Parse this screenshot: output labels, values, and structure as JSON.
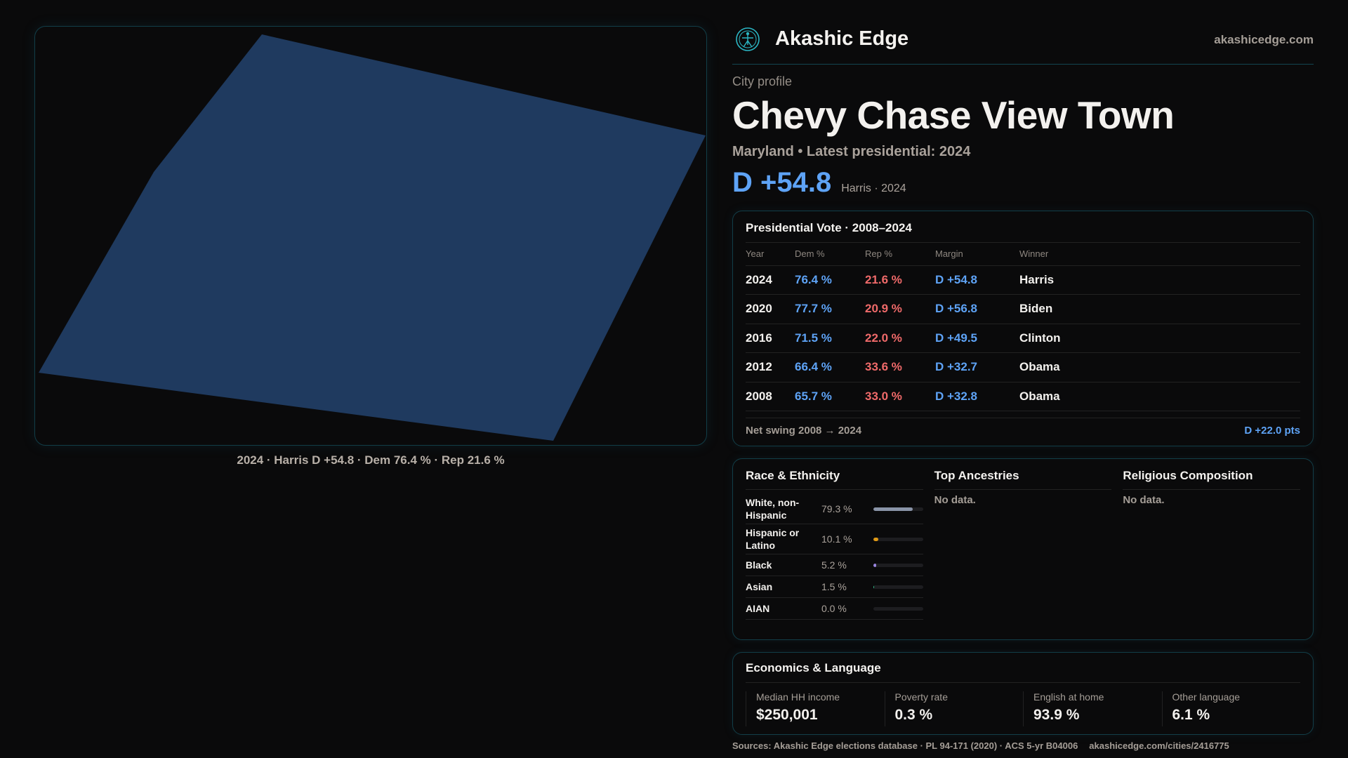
{
  "map": {
    "fill": "#1f3a5f",
    "caption": "2024 · Harris D +54.8 · Dem 76.4 % · Rep 21.6 %"
  },
  "header": {
    "brand": "Akashic Edge",
    "site": "akashicedge.com",
    "logo_icon": "compass-figure-icon"
  },
  "profile": {
    "eyebrow": "City profile",
    "title": "Chevy Chase View Town",
    "subtitle": "Maryland • Latest presidential: 2024",
    "margin": "D +54.8",
    "margin_note": "Harris · 2024"
  },
  "presidential": {
    "title": "Presidential Vote · 2008–2024",
    "columns": [
      "Year",
      "Dem %",
      "Rep %",
      "Margin",
      "Winner"
    ],
    "rows": [
      {
        "year": "2024",
        "dem": "76.4 %",
        "rep": "21.6 %",
        "margin": "D +54.8",
        "winner": "Harris"
      },
      {
        "year": "2020",
        "dem": "77.7 %",
        "rep": "20.9 %",
        "margin": "D +56.8",
        "winner": "Biden"
      },
      {
        "year": "2016",
        "dem": "71.5 %",
        "rep": "22.0 %",
        "margin": "D +49.5",
        "winner": "Clinton"
      },
      {
        "year": "2012",
        "dem": "66.4 %",
        "rep": "33.6 %",
        "margin": "D +32.7",
        "winner": "Obama"
      },
      {
        "year": "2008",
        "dem": "65.7 %",
        "rep": "33.0 %",
        "margin": "D +32.8",
        "winner": "Obama"
      }
    ],
    "swing_label": "Net swing 2008 → 2024",
    "swing_value": "D +22.0 pts"
  },
  "race": {
    "title": "Race & Ethnicity",
    "rows": [
      {
        "label": "White, non-Hispanic",
        "pct": "79.3 %",
        "value": 79.3,
        "color": "#8a94a8"
      },
      {
        "label": "Hispanic or Latino",
        "pct": "10.1 %",
        "value": 10.1,
        "color": "#e09a16"
      },
      {
        "label": "Black",
        "pct": "5.2 %",
        "value": 5.2,
        "color": "#9a86e0"
      },
      {
        "label": "Asian",
        "pct": "1.5 %",
        "value": 1.5,
        "color": "#2fc08a"
      },
      {
        "label": "AIAN",
        "pct": "0.0 %",
        "value": 0,
        "color": "#888888"
      }
    ]
  },
  "ancestries": {
    "title": "Top Ancestries",
    "empty": "No data."
  },
  "religion": {
    "title": "Religious Composition",
    "empty": "No data."
  },
  "economics": {
    "title": "Economics & Language",
    "stats": [
      {
        "label": "Median HH income",
        "value": "$250,001"
      },
      {
        "label": "Poverty rate",
        "value": "0.3 %"
      },
      {
        "label": "English at home",
        "value": "93.9 %"
      },
      {
        "label": "Other language",
        "value": "6.1 %"
      }
    ]
  },
  "footer": {
    "sources": "Sources: Akashic Edge elections database · PL 94-171 (2020) · ACS 5-yr B04006",
    "url": "akashicedge.com/cities/2416775"
  },
  "colors": {
    "dem": "#5ea3f6",
    "rep": "#f06a6a",
    "accent": "#1b8a9a"
  }
}
